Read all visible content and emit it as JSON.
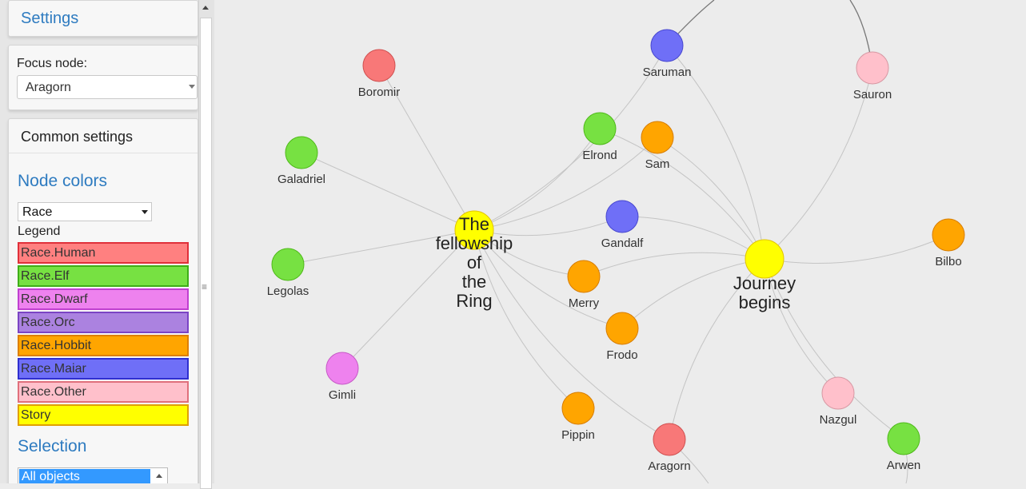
{
  "sidebar": {
    "settings_title": "Settings",
    "focus_label": "Focus node:",
    "focus_value": "Aragorn",
    "common_title": "Common settings",
    "node_colors_title": "Node colors",
    "node_colors_value": "Race",
    "legend_label": "Legend",
    "legend": [
      {
        "label": "Race.Human",
        "fill": "#ff8080",
        "border": "#e0303a"
      },
      {
        "label": "Race.Elf",
        "fill": "#77e142",
        "border": "#3fae18"
      },
      {
        "label": "Race.Dwarf",
        "fill": "#ee82ee",
        "border": "#c040d0"
      },
      {
        "label": "Race.Orc",
        "fill": "#ab82e0",
        "border": "#7b44c4"
      },
      {
        "label": "Race.Hobbit",
        "fill": "#ffa500",
        "border": "#dd7f00"
      },
      {
        "label": "Race.Maiar",
        "fill": "#6f6ff7",
        "border": "#2f2fd0"
      },
      {
        "label": "Race.Other",
        "fill": "#ffc0cb",
        "border": "#e0707c"
      },
      {
        "label": "Story",
        "fill": "#ffff00",
        "border": "#e0a000"
      }
    ],
    "selection_title": "Selection",
    "selection_value": "All objects"
  },
  "graph": {
    "nodes": [
      {
        "id": "boromir",
        "label": "Boromir",
        "color": "#f87878"
      },
      {
        "id": "galadriel",
        "label": "Galadriel",
        "color": "#77e142"
      },
      {
        "id": "legolas",
        "label": "Legolas",
        "color": "#77e142"
      },
      {
        "id": "gimli",
        "label": "Gimli",
        "color": "#ee82ee"
      },
      {
        "id": "saruman",
        "label": "Saruman",
        "color": "#6f6ff7"
      },
      {
        "id": "elrond",
        "label": "Elrond",
        "color": "#77e142"
      },
      {
        "id": "sam",
        "label": "Sam",
        "color": "#ffa500"
      },
      {
        "id": "gandalf",
        "label": "Gandalf",
        "color": "#6f6ff7"
      },
      {
        "id": "merry",
        "label": "Merry",
        "color": "#ffa500"
      },
      {
        "id": "frodo",
        "label": "Frodo",
        "color": "#ffa500"
      },
      {
        "id": "pippin",
        "label": "Pippin",
        "color": "#ffa500"
      },
      {
        "id": "aragorn",
        "label": "Aragorn",
        "color": "#f87878"
      },
      {
        "id": "sauron",
        "label": "Sauron",
        "color": "#ffc0cb"
      },
      {
        "id": "bilbo",
        "label": "Bilbo",
        "color": "#ffa500"
      },
      {
        "id": "nazgul",
        "label": "Nazgul",
        "color": "#ffc0cb"
      },
      {
        "id": "arwen",
        "label": "Arwen",
        "color": "#77e142"
      }
    ],
    "stories": [
      {
        "id": "fellowship",
        "lines": [
          "The",
          "fellowship",
          "of",
          "the",
          "Ring"
        ],
        "color": "#ffff00"
      },
      {
        "id": "journey",
        "lines": [
          "Journey",
          "begins"
        ],
        "color": "#ffff00"
      }
    ]
  }
}
